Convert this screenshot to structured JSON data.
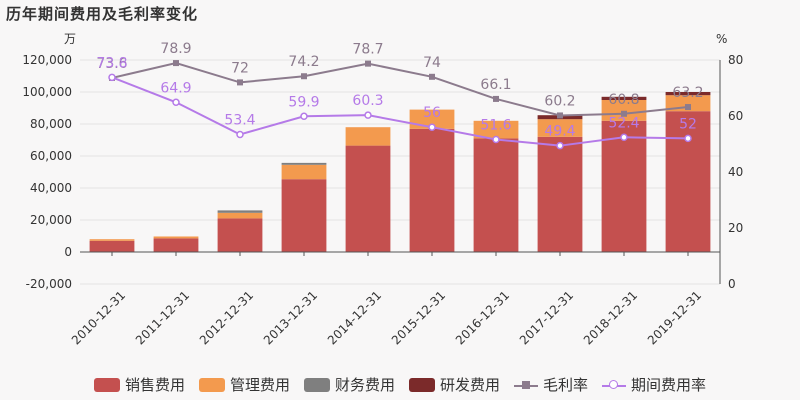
{
  "title": "历年期间费用及毛利率变化",
  "chart_data": {
    "type": "bar",
    "stacked": true,
    "categories": [
      "2010-12-31",
      "2011-12-31",
      "2012-12-31",
      "2013-12-31",
      "2014-12-31",
      "2015-12-31",
      "2016-12-31",
      "2017-12-31",
      "2018-12-31",
      "2019-12-31"
    ],
    "left_axis": {
      "unit": "万",
      "ylim": [
        -20000,
        120000
      ],
      "ticks": [
        -20000,
        0,
        20000,
        40000,
        60000,
        80000,
        100000,
        120000
      ],
      "tick_labels": [
        "-20,000",
        "0",
        "20,000",
        "40,000",
        "60,000",
        "80,000",
        "100,000",
        "120,000"
      ]
    },
    "right_axis": {
      "unit": "%",
      "ylim": [
        0,
        80
      ],
      "ticks": [
        0,
        20,
        40,
        60,
        80
      ],
      "tick_labels": [
        "0",
        "20",
        "40",
        "60",
        "80"
      ]
    },
    "series": [
      {
        "name": "销售费用",
        "type": "bar",
        "axis": "left",
        "color": "#c4504f",
        "values": [
          7000,
          8500,
          21000,
          45500,
          66500,
          77000,
          71000,
          72000,
          82000,
          88000
        ]
      },
      {
        "name": "管理费用",
        "type": "bar",
        "axis": "left",
        "color": "#f39a4e",
        "values": [
          1000,
          1200,
          3500,
          9000,
          11500,
          12000,
          11000,
          11000,
          13000,
          10000
        ]
      },
      {
        "name": "财务费用",
        "type": "bar",
        "axis": "left",
        "color": "#7f7f7f",
        "values": [
          0,
          0,
          1500,
          1200,
          0,
          0,
          0,
          0,
          0,
          0
        ]
      },
      {
        "name": "研发费用",
        "type": "bar",
        "axis": "left",
        "color": "#7b2a2a",
        "values": [
          0,
          0,
          0,
          0,
          0,
          0,
          0,
          2500,
          2000,
          2000
        ]
      },
      {
        "name": "毛利率",
        "type": "line",
        "axis": "right",
        "color": "#8c7b8d",
        "marker": "square",
        "values": [
          73.6,
          78.9,
          72,
          74.2,
          78.7,
          74,
          66.1,
          60.2,
          60.8,
          63.2
        ]
      },
      {
        "name": "期间费用率",
        "type": "line",
        "axis": "right",
        "color": "#b57ae8",
        "marker": "circle",
        "values": [
          73.8,
          64.9,
          53.4,
          59.9,
          60.3,
          56,
          51.6,
          49.4,
          52.4,
          52
        ]
      }
    ],
    "grid": true,
    "legend_position": "bottom"
  }
}
